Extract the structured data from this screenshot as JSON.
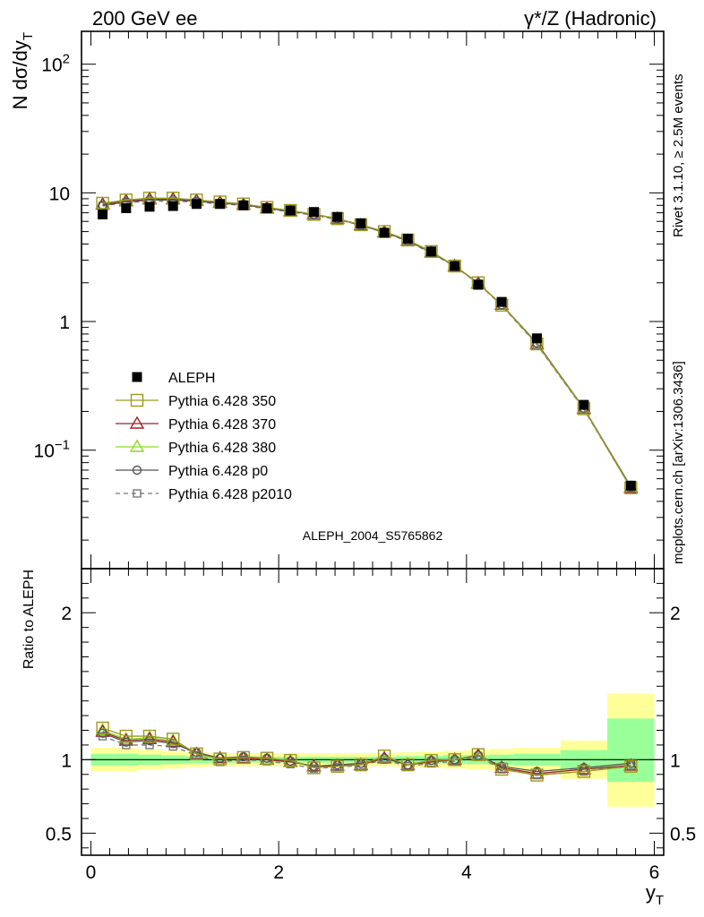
{
  "header": {
    "left": "200 GeV ee",
    "right": "γ*/Z (Hadronic)"
  },
  "side_labels": {
    "rivet": "Rivet 3.1.10, ≥ 2.5M events",
    "mcplots": "mcplots.cern.ch [arXiv:1306.3436]"
  },
  "watermark": "ALEPH_2004_S5765862",
  "colors": {
    "data": "#000000",
    "p350": "#9a9a20",
    "p370": "#a0202a",
    "p380": "#88dd22",
    "p0": "#555555",
    "p2010": "#777777",
    "band_outer": "#ffff99",
    "band_inner": "#99ff99"
  },
  "chart_data": [
    {
      "type": "scatter",
      "name": "main",
      "ylabel": "N dσ/dy_T",
      "yscale": "log",
      "ylim": [
        0.012,
        180
      ],
      "xlim": [
        -0.1,
        6.1
      ],
      "y_ticks": [
        {
          "value": 0.1,
          "base": "10",
          "exp": "−1"
        },
        {
          "value": 1,
          "base": "1",
          "exp": ""
        },
        {
          "value": 10,
          "base": "10",
          "exp": ""
        },
        {
          "value": 100,
          "base": "10",
          "exp": "2"
        }
      ],
      "x_bins": [
        0.125,
        0.375,
        0.625,
        0.875,
        1.125,
        1.375,
        1.625,
        1.875,
        2.125,
        2.375,
        2.625,
        2.875,
        3.125,
        3.375,
        3.625,
        3.875,
        4.125,
        4.375,
        4.75,
        5.25,
        5.75
      ],
      "series": [
        {
          "key": "data",
          "name": "ALEPH",
          "marker": "filled-square",
          "values": [
            6.8,
            7.6,
            7.8,
            7.9,
            8.2,
            8.2,
            8.0,
            7.6,
            7.3,
            7.1,
            6.5,
            5.8,
            4.9,
            4.4,
            3.5,
            2.7,
            1.93,
            1.42,
            0.74,
            0.225,
            0.053
          ]
        },
        {
          "key": "p350",
          "name": "Pythia 6.428 350",
          "marker": "open-square",
          "line": "solid",
          "values": [
            8.3,
            8.8,
            9.1,
            9.1,
            8.8,
            8.5,
            8.2,
            7.7,
            7.3,
            6.8,
            6.3,
            5.65,
            5.0,
            4.3,
            3.5,
            2.7,
            2.0,
            1.34,
            0.67,
            0.21,
            0.051
          ]
        },
        {
          "key": "p370",
          "name": "Pythia 6.428 370",
          "marker": "open-triangle",
          "line": "solid",
          "values": [
            8.1,
            8.6,
            8.9,
            8.9,
            8.7,
            8.4,
            8.1,
            7.6,
            7.2,
            6.8,
            6.3,
            5.6,
            4.95,
            4.25,
            3.45,
            2.7,
            1.98,
            1.35,
            0.67,
            0.21,
            0.051
          ]
        },
        {
          "key": "p380",
          "name": "Pythia 6.428 380",
          "marker": "open-triangle",
          "line": "solid",
          "values": [
            8.2,
            8.7,
            9.0,
            9.0,
            8.7,
            8.4,
            8.1,
            7.6,
            7.2,
            6.8,
            6.3,
            5.6,
            4.95,
            4.25,
            3.45,
            2.7,
            1.98,
            1.35,
            0.67,
            0.21,
            0.051
          ]
        },
        {
          "key": "p0",
          "name": "Pythia 6.428 p0",
          "marker": "open-circle",
          "line": "solid",
          "values": [
            8.0,
            8.5,
            8.8,
            8.8,
            8.6,
            8.3,
            8.1,
            7.6,
            7.2,
            6.8,
            6.3,
            5.6,
            4.95,
            4.25,
            3.45,
            2.7,
            1.98,
            1.35,
            0.68,
            0.212,
            0.052
          ]
        },
        {
          "key": "p2010",
          "name": "Pythia 6.428 p2010",
          "marker": "open-square-small",
          "line": "dashed",
          "values": [
            7.9,
            8.4,
            8.6,
            8.6,
            8.5,
            8.2,
            8.0,
            7.5,
            7.1,
            6.7,
            6.2,
            5.6,
            4.9,
            4.2,
            3.4,
            2.68,
            1.97,
            1.33,
            0.66,
            0.207,
            0.051
          ]
        }
      ]
    },
    {
      "type": "scatter",
      "name": "ratio",
      "ylabel": "Ratio to ALEPH",
      "xlabel": "y_T",
      "ylim": [
        0.35,
        2.3
      ],
      "xlim": [
        -0.1,
        6.1
      ],
      "y_ticks": [
        0.5,
        1,
        2
      ],
      "y_tick_labels": [
        "0.5",
        "1",
        "2"
      ],
      "x_ticks": [
        0,
        2,
        4,
        6
      ],
      "x_tick_labels": [
        "0",
        "2",
        "4",
        "6"
      ],
      "bands": [
        {
          "x0": 0.0,
          "x1": 0.25,
          "outer": [
            0.92,
            1.08
          ],
          "inner": [
            0.96,
            1.04
          ]
        },
        {
          "x0": 0.25,
          "x1": 0.5,
          "outer": [
            0.92,
            1.08
          ],
          "inner": [
            0.96,
            1.04
          ]
        },
        {
          "x0": 0.5,
          "x1": 0.75,
          "outer": [
            0.93,
            1.07
          ],
          "inner": [
            0.965,
            1.035
          ]
        },
        {
          "x0": 0.75,
          "x1": 1.0,
          "outer": [
            0.94,
            1.06
          ],
          "inner": [
            0.97,
            1.03
          ]
        },
        {
          "x0": 1.0,
          "x1": 1.25,
          "outer": [
            0.95,
            1.05
          ],
          "inner": [
            0.975,
            1.025
          ]
        },
        {
          "x0": 1.25,
          "x1": 1.5,
          "outer": [
            0.955,
            1.045
          ],
          "inner": [
            0.98,
            1.02
          ]
        },
        {
          "x0": 1.5,
          "x1": 1.75,
          "outer": [
            0.955,
            1.045
          ],
          "inner": [
            0.98,
            1.02
          ]
        },
        {
          "x0": 1.75,
          "x1": 2.0,
          "outer": [
            0.955,
            1.045
          ],
          "inner": [
            0.98,
            1.02
          ]
        },
        {
          "x0": 2.0,
          "x1": 2.25,
          "outer": [
            0.955,
            1.045
          ],
          "inner": [
            0.98,
            1.02
          ]
        },
        {
          "x0": 2.25,
          "x1": 2.5,
          "outer": [
            0.955,
            1.045
          ],
          "inner": [
            0.98,
            1.02
          ]
        },
        {
          "x0": 2.5,
          "x1": 2.75,
          "outer": [
            0.955,
            1.045
          ],
          "inner": [
            0.98,
            1.02
          ]
        },
        {
          "x0": 2.75,
          "x1": 3.0,
          "outer": [
            0.955,
            1.045
          ],
          "inner": [
            0.98,
            1.02
          ]
        },
        {
          "x0": 3.0,
          "x1": 3.25,
          "outer": [
            0.955,
            1.045
          ],
          "inner": [
            0.98,
            1.02
          ]
        },
        {
          "x0": 3.25,
          "x1": 3.5,
          "outer": [
            0.95,
            1.05
          ],
          "inner": [
            0.975,
            1.025
          ]
        },
        {
          "x0": 3.5,
          "x1": 3.75,
          "outer": [
            0.945,
            1.055
          ],
          "inner": [
            0.975,
            1.025
          ]
        },
        {
          "x0": 3.75,
          "x1": 4.0,
          "outer": [
            0.94,
            1.06
          ],
          "inner": [
            0.97,
            1.03
          ]
        },
        {
          "x0": 4.0,
          "x1": 4.25,
          "outer": [
            0.935,
            1.065
          ],
          "inner": [
            0.97,
            1.03
          ]
        },
        {
          "x0": 4.25,
          "x1": 4.5,
          "outer": [
            0.925,
            1.075
          ],
          "inner": [
            0.965,
            1.035
          ]
        },
        {
          "x0": 4.5,
          "x1": 5.0,
          "outer": [
            0.92,
            1.08
          ],
          "inner": [
            0.96,
            1.04
          ]
        },
        {
          "x0": 5.0,
          "x1": 5.5,
          "outer": [
            0.87,
            1.13
          ],
          "inner": [
            0.935,
            1.065
          ]
        },
        {
          "x0": 5.5,
          "x1": 6.0,
          "outer": [
            0.68,
            1.45
          ],
          "inner": [
            0.85,
            1.28
          ]
        }
      ],
      "series": [
        {
          "key": "p350",
          "values": [
            1.215,
            1.16,
            1.16,
            1.14,
            1.04,
            1.005,
            1.015,
            1.01,
            0.995,
            0.945,
            0.955,
            0.965,
            1.025,
            0.965,
            0.995,
            1.0,
            1.035,
            0.935,
            0.895,
            0.92,
            0.955
          ]
        },
        {
          "key": "p370",
          "values": [
            1.19,
            1.13,
            1.14,
            1.12,
            1.04,
            1.01,
            1.01,
            1.0,
            0.985,
            0.955,
            0.96,
            0.965,
            1.01,
            0.965,
            0.985,
            1.0,
            1.03,
            0.945,
            0.905,
            0.935,
            0.96
          ]
        },
        {
          "key": "p380",
          "values": [
            1.2,
            1.14,
            1.15,
            1.13,
            1.04,
            1.01,
            1.01,
            1.0,
            0.985,
            0.955,
            0.96,
            0.965,
            1.01,
            0.965,
            0.985,
            1.0,
            1.03,
            0.945,
            0.905,
            0.935,
            0.96
          ]
        },
        {
          "key": "p0",
          "values": [
            1.18,
            1.12,
            1.13,
            1.11,
            1.05,
            1.01,
            1.02,
            1.01,
            0.99,
            0.955,
            0.965,
            0.975,
            1.01,
            0.965,
            0.995,
            1.0,
            1.03,
            0.955,
            0.92,
            0.945,
            0.975
          ]
        },
        {
          "key": "p2010",
          "values": [
            1.16,
            1.1,
            1.1,
            1.09,
            1.03,
            0.985,
            1.0,
            0.99,
            0.97,
            0.94,
            0.95,
            0.96,
            1.0,
            0.955,
            0.975,
            0.99,
            1.02,
            0.935,
            0.895,
            0.92,
            0.96
          ]
        }
      ]
    }
  ]
}
